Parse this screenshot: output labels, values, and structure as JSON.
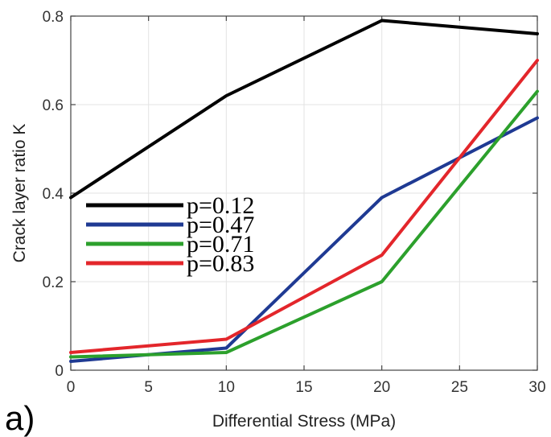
{
  "chart_data": {
    "type": "line",
    "title": "",
    "panel_label": "a)",
    "xlabel": "Differential Stress (MPa)",
    "ylabel": "Crack layer ratio K",
    "xlim": [
      0,
      30
    ],
    "ylim": [
      0,
      0.8
    ],
    "xticks": [
      0,
      5,
      10,
      15,
      20,
      25,
      30
    ],
    "yticks": [
      0,
      0.2,
      0.4,
      0.6,
      0.8
    ],
    "xtick_labels": [
      "0",
      "5",
      "10",
      "15",
      "20",
      "25",
      "30"
    ],
    "ytick_labels": [
      "0",
      "0.2",
      "0.4",
      "0.6",
      "0.8"
    ],
    "grid": true,
    "legend_position": "middle-left",
    "x": [
      0,
      10,
      20,
      30
    ],
    "series": [
      {
        "name": "p=0.12",
        "color": "#000000",
        "values": [
          0.39,
          0.62,
          0.79,
          0.76
        ]
      },
      {
        "name": "p=0.47",
        "color": "#1f3a93",
        "values": [
          0.02,
          0.05,
          0.39,
          0.57
        ]
      },
      {
        "name": "p=0.71",
        "color": "#2ca02c",
        "values": [
          0.03,
          0.04,
          0.2,
          0.63
        ]
      },
      {
        "name": "p=0.83",
        "color": "#e3262b",
        "values": [
          0.04,
          0.07,
          0.26,
          0.7
        ]
      }
    ]
  }
}
